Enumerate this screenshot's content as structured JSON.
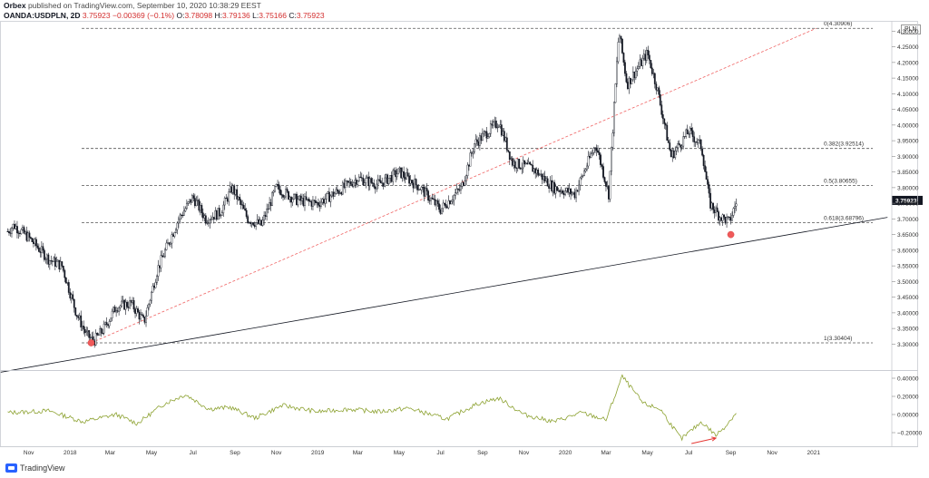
{
  "header": {
    "author": "Orbex",
    "published": "published on TradingView.com, September 10, 2020 10:38:29 EEST",
    "symbol": "OANDA:USDPLN, 2D",
    "last": "3.75923",
    "change": "−0.00369 (−0.1%)",
    "open_label": "O:",
    "open": "3.78098",
    "high_label": "H:",
    "high": "3.79136",
    "low_label": "L:",
    "low": "3.75166",
    "close_label": "C:",
    "close": "3.75923"
  },
  "currency_label": "PLN",
  "footer": {
    "brand": "TradingView"
  },
  "colors": {
    "candles": "#131722",
    "fib_lines": "#555555",
    "trendline": "#131722",
    "dashed_trend": "#f06464",
    "oscillator": "#8da231",
    "marker": "#f05a5a",
    "arrow": "#e53935",
    "last_price_bg": "#131722"
  },
  "chart_data": [
    {
      "type": "candlestick",
      "title": "OANDA:USDPLN, 2D",
      "ylim": [
        3.22,
        4.33
      ],
      "y_ticks": [
        "3.30000",
        "3.35000",
        "3.40000",
        "3.45000",
        "3.50000",
        "3.55000",
        "3.60000",
        "3.65000",
        "3.70000",
        "3.75000",
        "3.80000",
        "3.85000",
        "3.90000",
        "3.95000",
        "4.00000",
        "4.05000",
        "4.10000",
        "4.15000",
        "4.20000",
        "4.25000",
        "4.30000"
      ],
      "x_ticks": [
        "Nov",
        "2018",
        "Mar",
        "May",
        "Jul",
        "Sep",
        "Nov",
        "2019",
        "Mar",
        "May",
        "Jul",
        "Sep",
        "Nov",
        "2020",
        "Mar",
        "May",
        "Jul",
        "Sep",
        "Nov",
        "2021"
      ],
      "x_tick_dates": [
        "2017-11-01",
        "2018-01-01",
        "2018-03-01",
        "2018-05-01",
        "2018-07-01",
        "2018-09-01",
        "2018-11-01",
        "2019-01-01",
        "2019-03-01",
        "2019-05-01",
        "2019-07-01",
        "2019-09-01",
        "2019-11-01",
        "2020-01-01",
        "2020-03-01",
        "2020-05-01",
        "2020-07-01",
        "2020-09-01",
        "2020-11-01",
        "2021-01-01"
      ],
      "price_path": [
        [
          "2017-10-01",
          3.66
        ],
        [
          "2017-10-10",
          3.68
        ],
        [
          "2017-11-01",
          3.64
        ],
        [
          "2017-12-01",
          3.57
        ],
        [
          "2017-12-20",
          3.55
        ],
        [
          "2018-01-10",
          3.4
        ],
        [
          "2018-01-25",
          3.33
        ],
        [
          "2018-02-05",
          3.31
        ],
        [
          "2018-02-20",
          3.35
        ],
        [
          "2018-03-10",
          3.42
        ],
        [
          "2018-04-01",
          3.43
        ],
        [
          "2018-04-20",
          3.37
        ],
        [
          "2018-05-10",
          3.54
        ],
        [
          "2018-06-10",
          3.7
        ],
        [
          "2018-07-01",
          3.77
        ],
        [
          "2018-07-20",
          3.7
        ],
        [
          "2018-08-10",
          3.72
        ],
        [
          "2018-08-28",
          3.8
        ],
        [
          "2018-09-20",
          3.7
        ],
        [
          "2018-10-10",
          3.68
        ],
        [
          "2018-11-01",
          3.8
        ],
        [
          "2018-12-01",
          3.76
        ],
        [
          "2019-01-01",
          3.75
        ],
        [
          "2019-02-01",
          3.79
        ],
        [
          "2019-03-01",
          3.83
        ],
        [
          "2019-04-01",
          3.81
        ],
        [
          "2019-05-01",
          3.85
        ],
        [
          "2019-06-01",
          3.8
        ],
        [
          "2019-07-01",
          3.73
        ],
        [
          "2019-08-01",
          3.8
        ],
        [
          "2019-08-20",
          3.94
        ],
        [
          "2019-09-25",
          4.01
        ],
        [
          "2019-10-15",
          3.88
        ],
        [
          "2019-11-15",
          3.86
        ],
        [
          "2019-12-15",
          3.8
        ],
        [
          "2020-01-15",
          3.78
        ],
        [
          "2020-02-15",
          3.94
        ],
        [
          "2020-03-05",
          3.78
        ],
        [
          "2020-03-20",
          4.3
        ],
        [
          "2020-04-01",
          4.13
        ],
        [
          "2020-05-01",
          4.23
        ],
        [
          "2020-05-15",
          4.12
        ],
        [
          "2020-06-05",
          3.9
        ],
        [
          "2020-07-01",
          3.98
        ],
        [
          "2020-07-20",
          3.93
        ],
        [
          "2020-08-01",
          3.75
        ],
        [
          "2020-08-15",
          3.71
        ],
        [
          "2020-08-30",
          3.69
        ],
        [
          "2020-09-10",
          3.76
        ]
      ],
      "fib_levels": [
        {
          "label": "0(4.30906)",
          "value": 4.30906
        },
        {
          "label": "0.382(3.92514)",
          "value": 3.92514
        },
        {
          "label": "0.5(3.80655)",
          "value": 3.80655
        },
        {
          "label": "0.618(3.68796)",
          "value": 3.68796
        },
        {
          "label": "1(3.30404)",
          "value": 3.30404
        }
      ],
      "trendline": [
        [
          "2017-09-20",
          3.21
        ],
        [
          "2021-04-20",
          3.705
        ]
      ],
      "dashed_trendline": [
        [
          "2018-02-01",
          3.30404
        ],
        [
          "2021-01-05",
          4.30906
        ]
      ],
      "markers": [
        [
          "2018-02-01",
          3.30404
        ],
        [
          "2020-09-01",
          3.65
        ]
      ],
      "last_price": {
        "label": "3.75923",
        "value": 3.75923
      }
    },
    {
      "type": "line",
      "ylim": [
        -0.33,
        0.46
      ],
      "y_ticks": [
        "0.40000",
        "0.20000",
        "0.00000",
        "−0.20000"
      ],
      "y_tick_values": [
        0.4,
        0.2,
        0.0,
        -0.2
      ],
      "oscillator_path": [
        [
          "2017-10-01",
          0.02
        ],
        [
          "2017-12-01",
          0.04
        ],
        [
          "2018-01-20",
          -0.08
        ],
        [
          "2018-03-10",
          0.0
        ],
        [
          "2018-04-10",
          -0.1
        ],
        [
          "2018-05-20",
          0.12
        ],
        [
          "2018-06-20",
          0.22
        ],
        [
          "2018-07-25",
          0.06
        ],
        [
          "2018-08-25",
          0.08
        ],
        [
          "2018-10-01",
          -0.04
        ],
        [
          "2018-11-10",
          0.1
        ],
        [
          "2019-01-01",
          0.03
        ],
        [
          "2019-02-15",
          0.06
        ],
        [
          "2019-04-01",
          0.03
        ],
        [
          "2019-05-15",
          0.07
        ],
        [
          "2019-07-10",
          -0.05
        ],
        [
          "2019-08-25",
          0.12
        ],
        [
          "2019-09-25",
          0.18
        ],
        [
          "2019-11-01",
          0.0
        ],
        [
          "2019-12-15",
          -0.08
        ],
        [
          "2020-01-25",
          0.02
        ],
        [
          "2020-03-01",
          -0.06
        ],
        [
          "2020-03-25",
          0.42
        ],
        [
          "2020-04-25",
          0.12
        ],
        [
          "2020-05-20",
          0.06
        ],
        [
          "2020-06-20",
          -0.27
        ],
        [
          "2020-07-20",
          -0.08
        ],
        [
          "2020-08-10",
          -0.23
        ],
        [
          "2020-08-25",
          -0.12
        ],
        [
          "2020-09-10",
          0.03
        ]
      ],
      "arrow": [
        [
          "2020-07-05",
          -0.32
        ],
        [
          "2020-08-10",
          -0.26
        ]
      ]
    }
  ]
}
